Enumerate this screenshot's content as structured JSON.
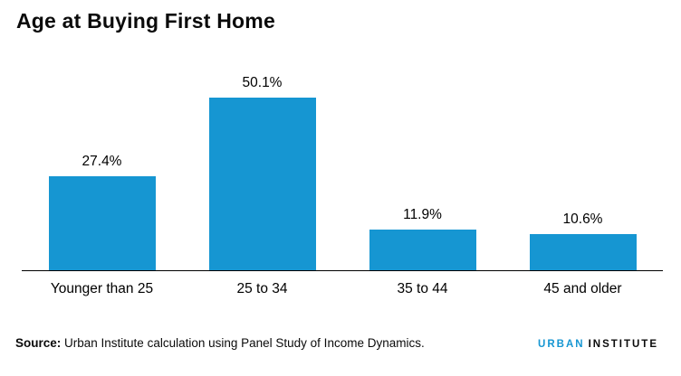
{
  "title": "Age at Buying First Home",
  "source": {
    "label": "Source:",
    "text": " Urban Institute calculation using Panel Study of Income Dynamics."
  },
  "logo": {
    "part1": "URBAN",
    "part2": "INSTITUTE"
  },
  "colors": {
    "bar": "#1696d2",
    "logo_blue": "#1696d2",
    "axis": "#000000",
    "text": "#000000"
  },
  "chart_data": {
    "type": "bar",
    "title": "Age at Buying First Home",
    "categories": [
      "Younger than 25",
      "25 to 34",
      "35 to 44",
      "45 and older"
    ],
    "values": [
      27.4,
      50.1,
      11.9,
      10.6
    ],
    "value_labels": [
      "27.4%",
      "50.1%",
      "11.9%",
      "10.6%"
    ],
    "xlabel": "",
    "ylabel": "",
    "ylim": [
      0,
      55
    ],
    "grid": false,
    "legend": "none",
    "bar_color": "#1696d2"
  }
}
